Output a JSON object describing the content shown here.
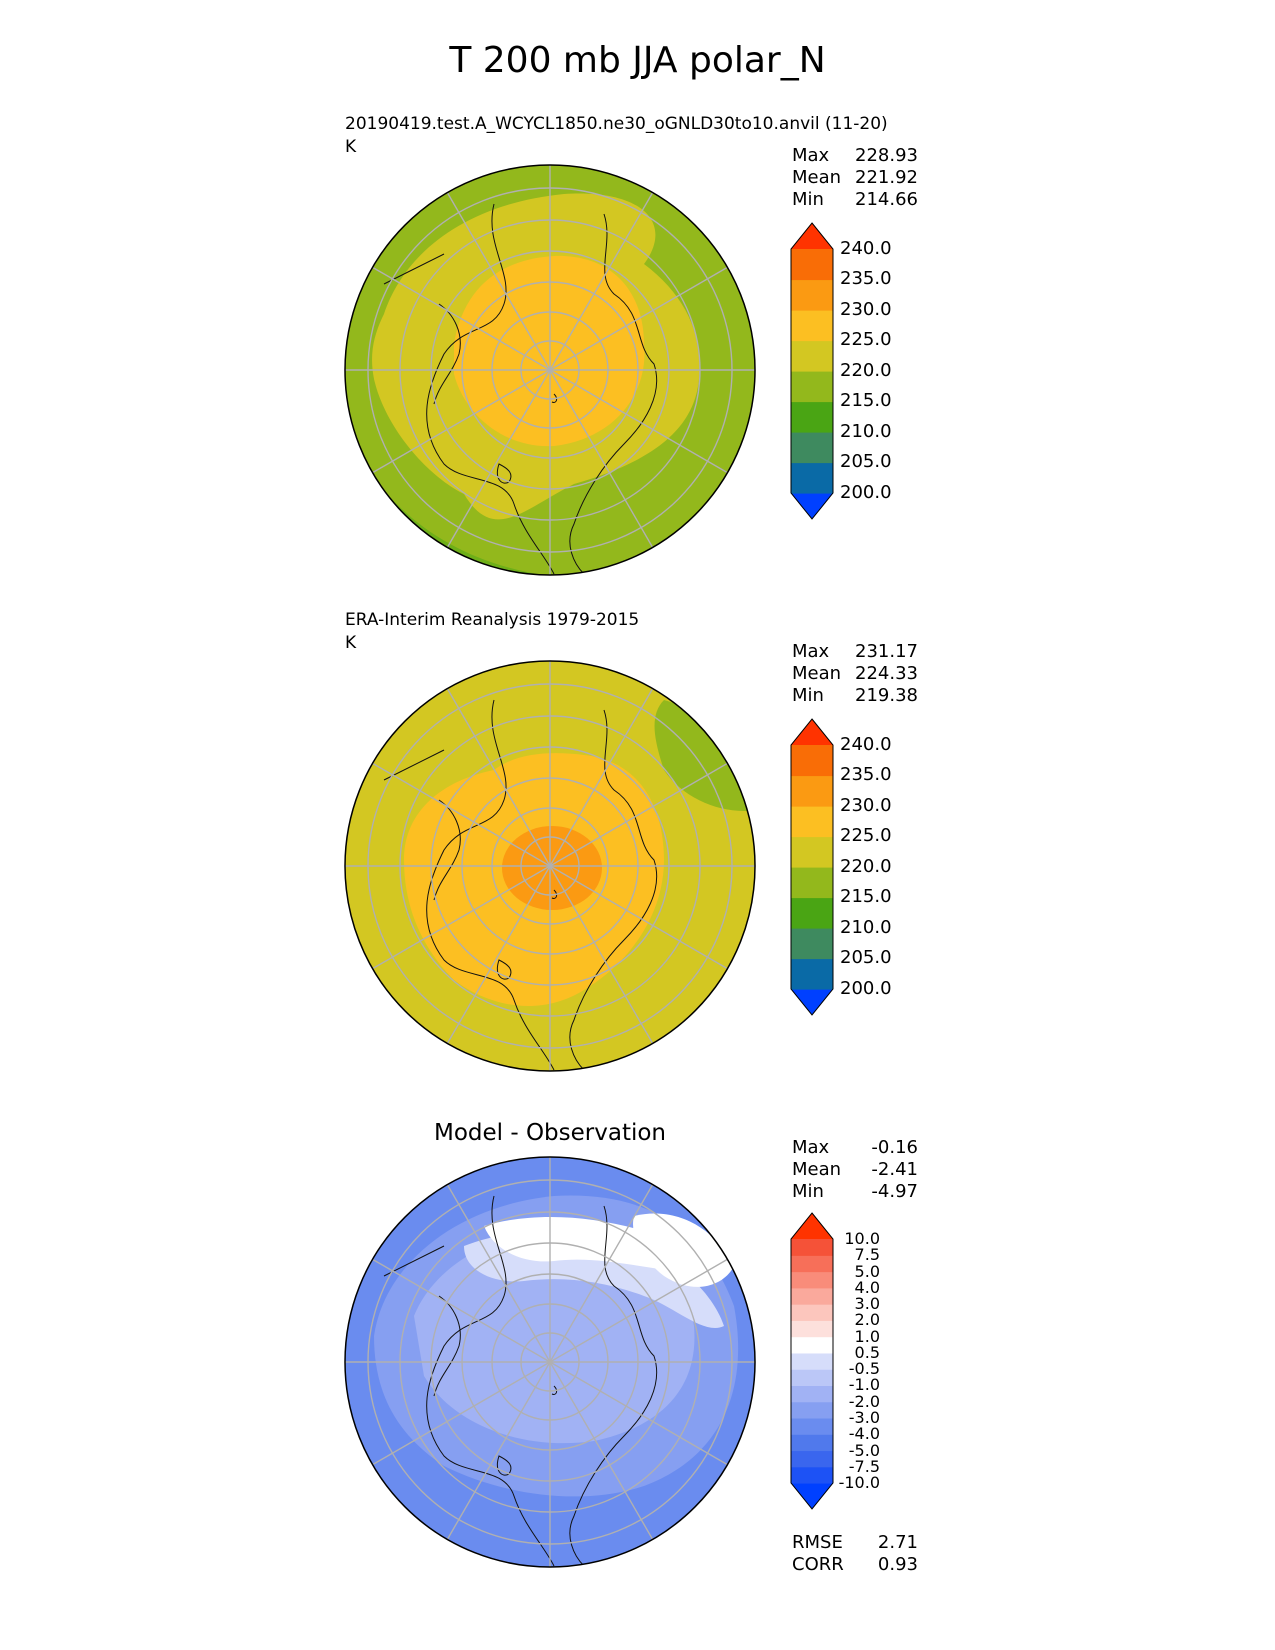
{
  "figure": {
    "title": "T 200 mb JJA polar_N"
  },
  "panels": [
    {
      "id": "test",
      "title": "",
      "subtitle": "20190419.test.A_WCYCL1850.ne30_oGNLD30to10.anvil (11-20)",
      "units": "K",
      "stats": [
        {
          "label": "Max",
          "value": "228.93"
        },
        {
          "label": "Mean",
          "value": "221.92"
        },
        {
          "label": "Min",
          "value": "214.66"
        }
      ],
      "colorbar": {
        "ticks": [
          "240.0",
          "235.0",
          "230.0",
          "225.0",
          "220.0",
          "215.0",
          "210.0",
          "205.0",
          "200.0"
        ],
        "colors": [
          "#0040ff",
          "#0a6aa6",
          "#3e8a5f",
          "#4aa514",
          "#93b81c",
          "#d3c722",
          "#fcbf22",
          "#fb9a12",
          "#f96d06",
          "#ff3300"
        ]
      }
    },
    {
      "id": "ref",
      "title": "",
      "subtitle": "ERA-Interim Reanalysis 1979-2015",
      "units": "K",
      "stats": [
        {
          "label": "Max",
          "value": "231.17"
        },
        {
          "label": "Mean",
          "value": "224.33"
        },
        {
          "label": "Min",
          "value": "219.38"
        }
      ],
      "colorbar": {
        "ticks": [
          "240.0",
          "235.0",
          "230.0",
          "225.0",
          "220.0",
          "215.0",
          "210.0",
          "205.0",
          "200.0"
        ],
        "colors": [
          "#0040ff",
          "#0a6aa6",
          "#3e8a5f",
          "#4aa514",
          "#93b81c",
          "#d3c722",
          "#fcbf22",
          "#fb9a12",
          "#f96d06",
          "#ff3300"
        ]
      }
    },
    {
      "id": "diff",
      "title": "Model - Observation",
      "subtitle": "",
      "units": "",
      "stats": [
        {
          "label": "Max",
          "value": "-0.16"
        },
        {
          "label": "Mean",
          "value": "-2.41"
        },
        {
          "label": "Min",
          "value": "-4.97"
        }
      ],
      "extra_stats": [
        {
          "label": "RMSE",
          "value": "2.71"
        },
        {
          "label": "CORR",
          "value": "0.93"
        }
      ],
      "colorbar": {
        "ticks": [
          "10.0",
          "7.5",
          "5.0",
          "4.0",
          "3.0",
          "2.0",
          "1.0",
          "0.5",
          "-0.5",
          "-1.0",
          "-2.0",
          "-3.0",
          "-4.0",
          "-5.0",
          "-7.5",
          "-10.0"
        ],
        "colors": [
          "#0040ff",
          "#1d52f5",
          "#3a66ee",
          "#5079ec",
          "#6a8cef",
          "#869ff1",
          "#a1b2f4",
          "#bbc7f7",
          "#d6ddfa",
          "#ffffff",
          "#fde0dc",
          "#fcc6bd",
          "#faa99c",
          "#f98c7a",
          "#f76f59",
          "#f55238",
          "#ff3300"
        ]
      }
    }
  ],
  "chart_data": [
    {
      "type": "heatmap",
      "projection": "north-polar-stereographic",
      "title": "",
      "subtitle": "20190419.test.A_WCYCL1850.ne30_oGNLD30to10.anvil (11-20)",
      "units": "K",
      "levels": [
        200,
        205,
        210,
        215,
        220,
        225,
        230,
        235,
        240
      ],
      "stats": {
        "max": 228.93,
        "mean": 221.92,
        "min": 214.66
      },
      "field_bands": [
        {
          "range": [
            215,
            220
          ],
          "region": "outer ring"
        },
        {
          "range": [
            220,
            225
          ],
          "region": "middle ring"
        },
        {
          "range": [
            225,
            230
          ],
          "region": "polar cap"
        }
      ]
    },
    {
      "type": "heatmap",
      "projection": "north-polar-stereographic",
      "title": "",
      "subtitle": "ERA-Interim Reanalysis 1979-2015",
      "units": "K",
      "levels": [
        200,
        205,
        210,
        215,
        220,
        225,
        230,
        235,
        240
      ],
      "stats": {
        "max": 231.17,
        "mean": 224.33,
        "min": 219.38
      },
      "field_bands": [
        {
          "range": [
            215,
            220
          ],
          "region": "north Pacific edge"
        },
        {
          "range": [
            220,
            225
          ],
          "region": "outer ring"
        },
        {
          "range": [
            225,
            230
          ],
          "region": "polar cap"
        },
        {
          "range": [
            230,
            235
          ],
          "region": "pole"
        }
      ]
    },
    {
      "type": "heatmap",
      "projection": "north-polar-stereographic",
      "title": "Model - Observation",
      "units": "",
      "levels": [
        -10.0,
        -7.5,
        -5.0,
        -4.0,
        -3.0,
        -2.0,
        -1.0,
        -0.5,
        0.5,
        1.0,
        2.0,
        3.0,
        4.0,
        5.0,
        7.5,
        10.0
      ],
      "stats": {
        "max": -0.16,
        "mean": -2.41,
        "min": -4.97,
        "rmse": 2.71,
        "corr": 0.93
      },
      "field_bands": [
        {
          "range": [
            -4.0,
            -3.0
          ],
          "region": "outer ring"
        },
        {
          "range": [
            -3.0,
            -2.0
          ],
          "region": "middle ring"
        },
        {
          "range": [
            -2.0,
            -1.0
          ],
          "region": "polar cap"
        },
        {
          "range": [
            -0.5,
            0.5
          ],
          "region": "north Pacific edge"
        }
      ]
    }
  ]
}
